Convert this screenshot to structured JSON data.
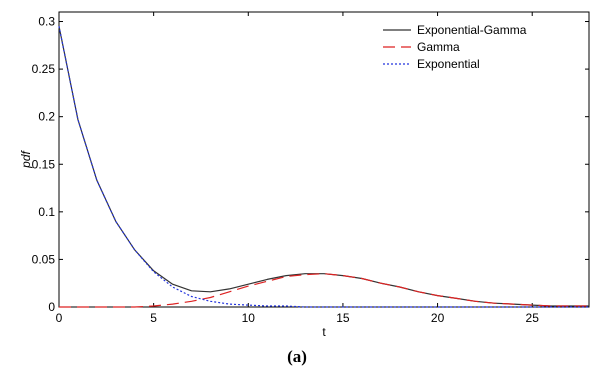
{
  "caption": "(a)",
  "chart_data": {
    "type": "line",
    "title": "",
    "xlabel": "t",
    "ylabel": "pdf",
    "xlim": [
      0,
      28
    ],
    "ylim": [
      0,
      0.31
    ],
    "xticks": [
      0,
      5,
      10,
      15,
      20,
      25
    ],
    "xtick_labels": [
      "0",
      "5",
      "10",
      "15",
      "20",
      "25"
    ],
    "yticks": [
      0,
      0.05,
      0.1,
      0.15,
      0.2,
      0.25,
      0.3
    ],
    "ytick_labels": [
      "0",
      "0.05",
      "0.1",
      "0.15",
      "0.2",
      "0.25",
      "0.3"
    ],
    "grid": false,
    "legend_position": "top-right",
    "x": [
      0,
      1,
      2,
      3,
      4,
      5,
      6,
      7,
      8,
      9,
      10,
      11,
      12,
      13,
      14,
      15,
      16,
      17,
      18,
      19,
      20,
      21,
      22,
      23,
      24,
      25,
      26,
      27,
      28
    ],
    "series": [
      {
        "name": "Exponential-Gamma",
        "color": "#333333",
        "dash": "solid",
        "values": [
          0.295,
          0.197,
          0.133,
          0.09,
          0.06,
          0.038,
          0.024,
          0.017,
          0.016,
          0.019,
          0.024,
          0.029,
          0.033,
          0.035,
          0.035,
          0.033,
          0.03,
          0.025,
          0.021,
          0.016,
          0.012,
          0.009,
          0.006,
          0.004,
          0.003,
          0.002,
          0.001,
          0.001,
          0.001
        ]
      },
      {
        "name": "Gamma",
        "color": "#dd2222",
        "dash": "long-dash",
        "values": [
          0.0,
          0.0,
          0.0,
          0.0,
          0.0,
          0.001,
          0.003,
          0.006,
          0.01,
          0.016,
          0.022,
          0.027,
          0.032,
          0.034,
          0.035,
          0.033,
          0.03,
          0.025,
          0.021,
          0.016,
          0.012,
          0.009,
          0.006,
          0.004,
          0.003,
          0.002,
          0.001,
          0.001,
          0.001
        ]
      },
      {
        "name": "Exponential",
        "color": "#2233dd",
        "dash": "dotted",
        "values": [
          0.295,
          0.197,
          0.133,
          0.09,
          0.06,
          0.037,
          0.021,
          0.011,
          0.006,
          0.003,
          0.002,
          0.001,
          0.001,
          0.0,
          0.0,
          0.0,
          0.0,
          0.0,
          0.0,
          0.0,
          0.0,
          0.0,
          0.0,
          0.0,
          0.0,
          0.0,
          0.0,
          0.0,
          0.0
        ]
      }
    ]
  }
}
